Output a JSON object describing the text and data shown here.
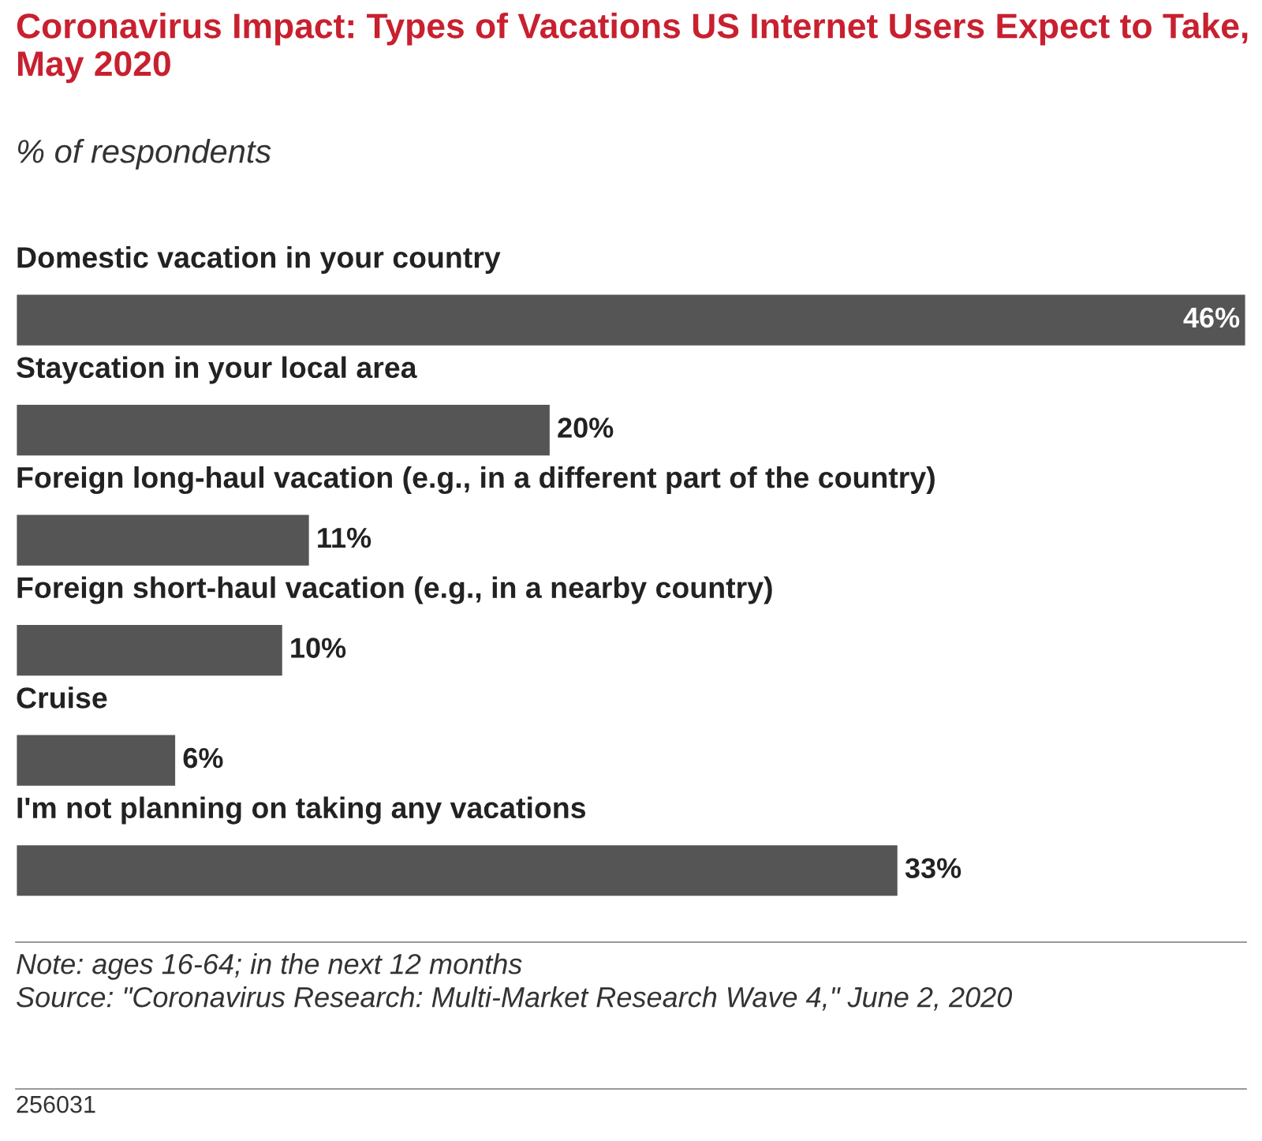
{
  "chart_data": {
    "type": "bar",
    "orientation": "horizontal",
    "title": "Coronavirus Impact: Types of Vacations US Internet Users Expect to Take, May 2020",
    "subtitle": "% of respondents",
    "categories": [
      "Domestic vacation in your country",
      "Staycation in your local area",
      "Foreign long-haul vacation (e.g., in a different part of the country)",
      "Foreign short-haul vacation (e.g., in a nearby country)",
      "Cruise",
      "I'm not planning on taking any vacations"
    ],
    "values": [
      46,
      20,
      11,
      10,
      6,
      33
    ],
    "value_labels": [
      "46%",
      "20%",
      "11%",
      "10%",
      "6%",
      "33%"
    ],
    "color": "#555555",
    "annotations": [
      "Note: ages 16-64; in the next 12 months",
      "Source: \"Coronavirus Research: Multi-Market Research Wave 4,\" June 2, 2020",
      "256031"
    ]
  }
}
